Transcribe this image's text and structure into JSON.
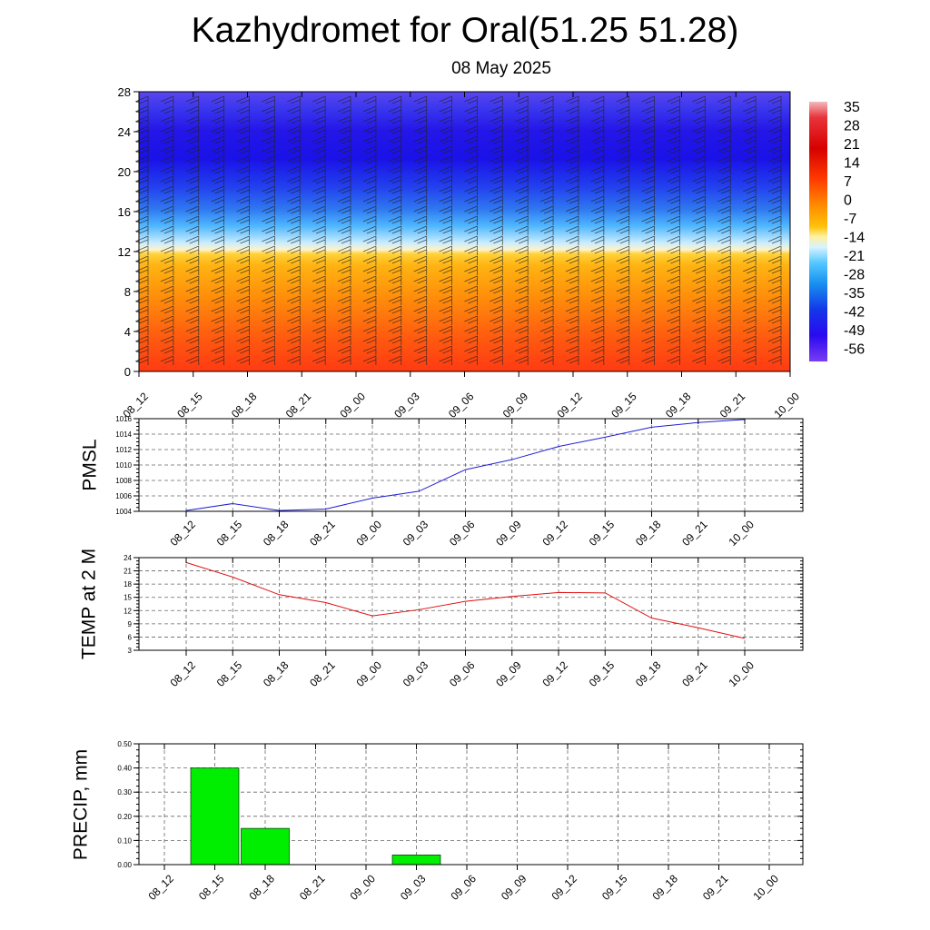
{
  "header": {
    "title": "Kazhydromet for Oral(51.25 51.28)",
    "subtitle": "08 May 2025"
  },
  "colors": {
    "pmsl_line": "#1f1fd6",
    "temp_line": "#e01010",
    "precip_bar": "#00ee00"
  },
  "chart_data": [
    {
      "type": "heatmap",
      "name_hint": "temperature cross-section with wind barbs",
      "x_tick_labels": [
        "08_12",
        "08_15",
        "08_18",
        "08_21",
        "09_00",
        "09_03",
        "09_06",
        "09_09",
        "09_12",
        "09_15",
        "09_18",
        "09_21",
        "10_00"
      ],
      "y_tick_labels": [
        "0",
        "4",
        "8",
        "12",
        "16",
        "20",
        "24",
        "28"
      ],
      "ylim": [
        0,
        28
      ],
      "colorbar_labels": [
        "35",
        "28",
        "21",
        "14",
        "7",
        "0",
        "-7",
        "-14",
        "-21",
        "-28",
        "-35",
        "-42",
        "-49",
        "-56"
      ],
      "colorbar_range": [
        -63,
        42
      ],
      "profile_levels": [
        0,
        2,
        4,
        6,
        8,
        10,
        12,
        14,
        16,
        18,
        20,
        22,
        24,
        26,
        28
      ],
      "profile_values": [
        14,
        10,
        7,
        3,
        0,
        -3,
        -9,
        -28,
        -40,
        -52,
        -58,
        -56,
        -54,
        -48,
        -42
      ],
      "wind_barbs": true
    },
    {
      "type": "line",
      "ylabel": "PMSL",
      "categories": [
        "08_12",
        "08_15",
        "08_18",
        "08_21",
        "09_00",
        "09_03",
        "09_06",
        "09_09",
        "09_12",
        "09_15",
        "09_18",
        "09_21",
        "10_00"
      ],
      "values": [
        1004.1,
        1005.0,
        1004.1,
        1004.3,
        1005.7,
        1006.6,
        1009.4,
        1010.7,
        1012.4,
        1013.6,
        1014.9,
        1015.5,
        1015.9
      ],
      "ylim": [
        1004,
        1016
      ],
      "y_ticks": [
        "1004",
        "1006",
        "1008",
        "1010",
        "1012",
        "1014",
        "1016"
      ],
      "grid": true
    },
    {
      "type": "line",
      "ylabel": "TEMP at 2 M",
      "categories": [
        "08_12",
        "08_15",
        "08_18",
        "08_21",
        "09_00",
        "09_03",
        "09_06",
        "09_09",
        "09_12",
        "09_15",
        "09_18",
        "09_21",
        "10_00"
      ],
      "values": [
        22.9,
        19.6,
        15.6,
        13.8,
        10.8,
        12.2,
        14.1,
        15.2,
        16.1,
        16.0,
        10.3,
        8.1,
        5.7
      ],
      "ylim": [
        3,
        24
      ],
      "y_ticks": [
        "3",
        "6",
        "9",
        "12",
        "15",
        "18",
        "21",
        "24"
      ],
      "grid": true
    },
    {
      "type": "bar",
      "ylabel": "PRECIP, mm",
      "categories": [
        "08_12",
        "08_15",
        "08_18",
        "08_21",
        "09_00",
        "09_03",
        "09_06",
        "09_09",
        "09_12",
        "09_15",
        "09_18",
        "09_21",
        "10_00"
      ],
      "values": [
        0,
        0.4,
        0.15,
        0,
        0,
        0.04,
        0,
        0,
        0,
        0,
        0,
        0,
        0
      ],
      "ylim": [
        0,
        0.5
      ],
      "y_ticks": [
        "0.00",
        "0.10",
        "0.20",
        "0.30",
        "0.40",
        "0.50"
      ],
      "grid": true
    }
  ]
}
